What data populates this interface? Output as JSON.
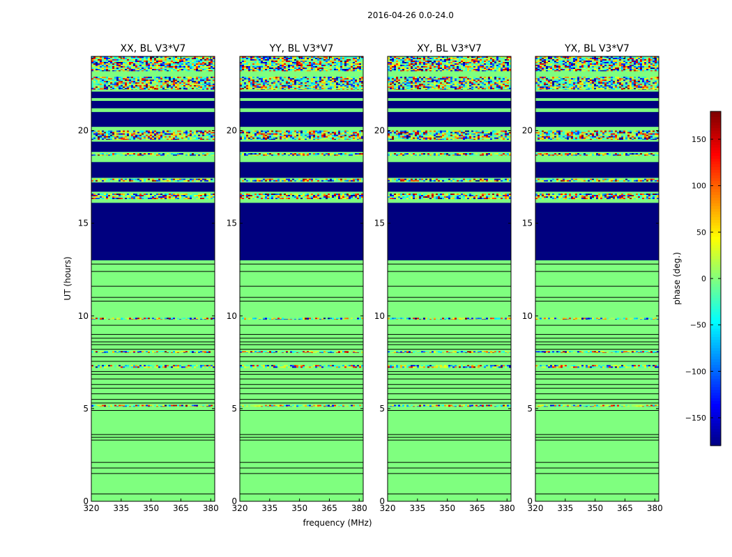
{
  "suptitle": "2016-04-26 0.0-24.0",
  "colors": {
    "flag_green": "#7fff7f",
    "empty_blue": "#00007f",
    "line_black": "#000000"
  },
  "chart_data": {
    "type": "heatmap",
    "xlabel": "frequency (MHz)",
    "ylabel": "UT (hours)",
    "xlim": [
      320,
      382
    ],
    "ylim": [
      0,
      24
    ],
    "xticks": [
      320,
      335,
      350,
      365,
      380
    ],
    "yticks": [
      0,
      5,
      10,
      15,
      20
    ],
    "panels": [
      {
        "title": "XX, BL V3*V7",
        "noise_scale": 1.0
      },
      {
        "title": "YY, BL V3*V7",
        "noise_scale": 1.0
      },
      {
        "title": "XY, BL V3*V7",
        "noise_scale": 1.0
      },
      {
        "title": "YX, BL V3*V7",
        "noise_scale": 1.0
      }
    ],
    "blue_ranges": [
      [
        13.0,
        16.1
      ],
      [
        16.7,
        17.2
      ],
      [
        17.45,
        18.3
      ],
      [
        18.85,
        19.4
      ],
      [
        20.2,
        21.0
      ],
      [
        21.2,
        21.6
      ],
      [
        21.75,
        22.1
      ]
    ],
    "noisy_ranges": [
      [
        23.2,
        24.0
      ],
      [
        22.2,
        22.9
      ],
      [
        19.5,
        20.0
      ],
      [
        17.25,
        17.4
      ],
      [
        16.3,
        16.6
      ],
      [
        18.65,
        18.78
      ],
      [
        7.2,
        7.35
      ],
      [
        5.1,
        5.2
      ],
      [
        9.8,
        9.9
      ],
      [
        8.0,
        8.1
      ]
    ],
    "flag_lines_ut": [
      0.4,
      1.5,
      1.8,
      2.1,
      3.3,
      3.45,
      3.6,
      4.9,
      5.3,
      5.5,
      5.8,
      6.1,
      6.3,
      6.6,
      6.85,
      7.0,
      7.55,
      7.8,
      8.2,
      8.45,
      8.6,
      8.8,
      9.0,
      9.5,
      10.8,
      11.0,
      11.6,
      12.4,
      12.8
    ],
    "colorbar": {
      "label": "phase (deg.)",
      "range": [
        -180,
        180
      ],
      "ticks": [
        -150,
        -100,
        -50,
        0,
        50,
        100,
        150
      ],
      "tick_labels": [
        "−150",
        "−100",
        "−50",
        "0",
        "50",
        "100",
        "150"
      ],
      "colormap": "jet"
    }
  }
}
